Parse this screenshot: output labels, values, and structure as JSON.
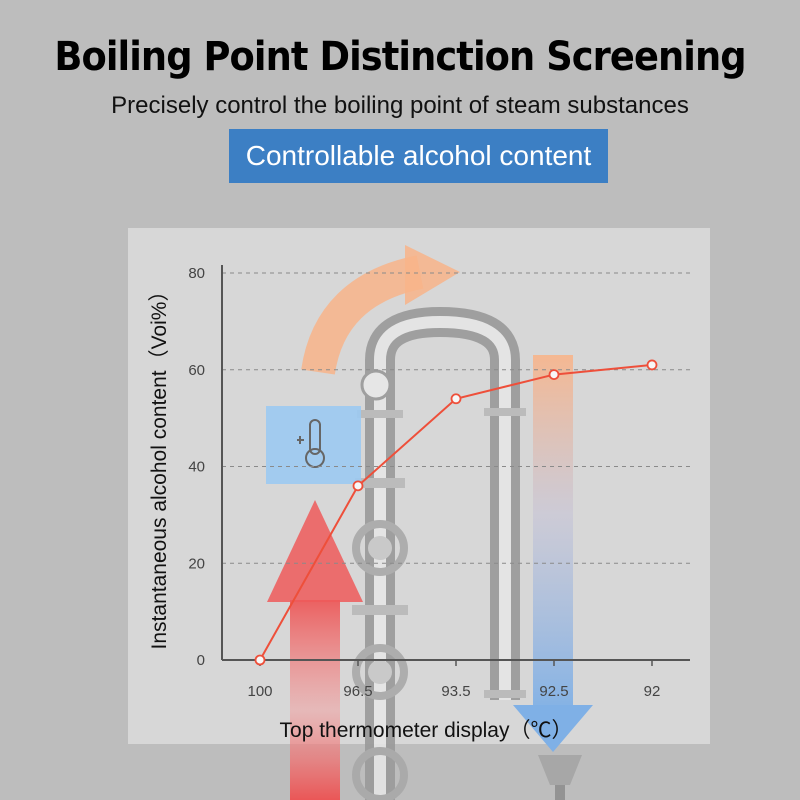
{
  "header": {
    "title": "Boiling Point Distinction Screening",
    "subtitle": "Precisely control the boiling point of steam substances",
    "banner": "Controllable alcohol content"
  },
  "colors": {
    "banner": "#3c7fc4",
    "line": "#ee4f3a",
    "hot_arrow": "#ef4b4b",
    "warm_arrow": "#f8b48a",
    "cold_arrow": "#7fb0e6",
    "icon_box": "#9ccaf2"
  },
  "icons": [
    "thermometer-icon"
  ],
  "chart_data": {
    "type": "line",
    "categories": [
      "100",
      "96.5",
      "93.5",
      "92.5",
      "92"
    ],
    "values": [
      0,
      36,
      54,
      59,
      61
    ],
    "xlabel": "Top thermometer display（℃）",
    "ylabel": "Instantaneous alcohol content（Voi%）",
    "ylim": [
      0,
      80
    ],
    "yticks": [
      0,
      20,
      40,
      60,
      80
    ],
    "grid": true
  }
}
